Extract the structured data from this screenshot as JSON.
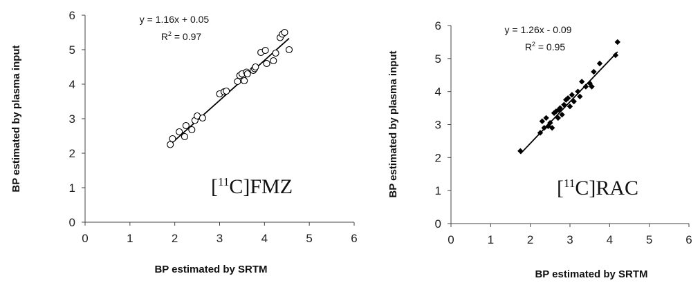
{
  "chart_data": [
    {
      "type": "scatter",
      "tracer": {
        "prefix": "[",
        "sup": "11",
        "suffix": "C]FMZ"
      },
      "xlabel": "BP estimated by SRTM",
      "ylabel": "BP estimated by plasma input",
      "xlim": [
        0,
        6
      ],
      "ylim": [
        0,
        6
      ],
      "xticks": [
        "0",
        "1",
        "2",
        "3",
        "4",
        "5",
        "6"
      ],
      "yticks": [
        "0",
        "1",
        "2",
        "3",
        "4",
        "5",
        "6"
      ],
      "equation": "y = 1.16x + 0.05",
      "r2": {
        "label": "R",
        "sup": "2",
        "value": " = 0.97"
      },
      "trendline": {
        "slope": 1.16,
        "intercept": 0.05,
        "x_range": [
          1.9,
          4.55
        ]
      },
      "marker": "open-circle",
      "points": [
        [
          1.9,
          2.25
        ],
        [
          1.95,
          2.42
        ],
        [
          2.1,
          2.62
        ],
        [
          2.22,
          2.48
        ],
        [
          2.25,
          2.8
        ],
        [
          2.38,
          2.68
        ],
        [
          2.45,
          2.95
        ],
        [
          2.5,
          3.08
        ],
        [
          2.62,
          3.02
        ],
        [
          3.0,
          3.72
        ],
        [
          3.1,
          3.78
        ],
        [
          3.15,
          3.8
        ],
        [
          3.4,
          4.08
        ],
        [
          3.45,
          4.25
        ],
        [
          3.5,
          4.3
        ],
        [
          3.55,
          4.1
        ],
        [
          3.6,
          4.35
        ],
        [
          3.62,
          4.3
        ],
        [
          3.75,
          4.4
        ],
        [
          3.78,
          4.45
        ],
        [
          3.8,
          4.5
        ],
        [
          3.92,
          4.92
        ],
        [
          4.02,
          4.98
        ],
        [
          4.05,
          4.6
        ],
        [
          4.2,
          4.68
        ],
        [
          4.25,
          4.9
        ],
        [
          4.35,
          5.35
        ],
        [
          4.4,
          5.45
        ],
        [
          4.45,
          5.5
        ],
        [
          4.55,
          5.0
        ]
      ]
    },
    {
      "type": "scatter",
      "tracer": {
        "prefix": "[",
        "sup": "11",
        "suffix": "C]RAC"
      },
      "xlabel": "BP estimated by SRTM",
      "ylabel": "BP estimated by plasma input",
      "xlim": [
        0,
        6
      ],
      "ylim": [
        0,
        6
      ],
      "xticks": [
        "0",
        "1",
        "2",
        "3",
        "4",
        "5",
        "6"
      ],
      "yticks": [
        "0",
        "1",
        "2",
        "3",
        "4",
        "5",
        "6"
      ],
      "equation": "y = 1.26x - 0.09",
      "r2": {
        "label": "R",
        "sup": "2",
        "value": " = 0.95"
      },
      "trendline": {
        "slope": 1.26,
        "intercept": -0.09,
        "x_range": [
          1.75,
          4.2
        ]
      },
      "marker": "filled-diamond",
      "points": [
        [
          1.75,
          2.2
        ],
        [
          2.25,
          2.75
        ],
        [
          2.3,
          3.1
        ],
        [
          2.35,
          2.9
        ],
        [
          2.4,
          3.2
        ],
        [
          2.45,
          2.95
        ],
        [
          2.5,
          3.05
        ],
        [
          2.55,
          2.9
        ],
        [
          2.6,
          3.35
        ],
        [
          2.65,
          3.4
        ],
        [
          2.7,
          3.2
        ],
        [
          2.72,
          3.45
        ],
        [
          2.75,
          3.5
        ],
        [
          2.8,
          3.3
        ],
        [
          2.85,
          3.6
        ],
        [
          2.9,
          3.75
        ],
        [
          2.95,
          3.8
        ],
        [
          3.0,
          3.55
        ],
        [
          3.05,
          3.9
        ],
        [
          3.1,
          3.7
        ],
        [
          3.2,
          4.0
        ],
        [
          3.25,
          3.85
        ],
        [
          3.3,
          4.3
        ],
        [
          3.4,
          4.15
        ],
        [
          3.5,
          4.25
        ],
        [
          3.55,
          4.15
        ],
        [
          3.6,
          4.6
        ],
        [
          3.75,
          4.85
        ],
        [
          4.15,
          5.1
        ],
        [
          4.2,
          5.5
        ]
      ]
    }
  ]
}
